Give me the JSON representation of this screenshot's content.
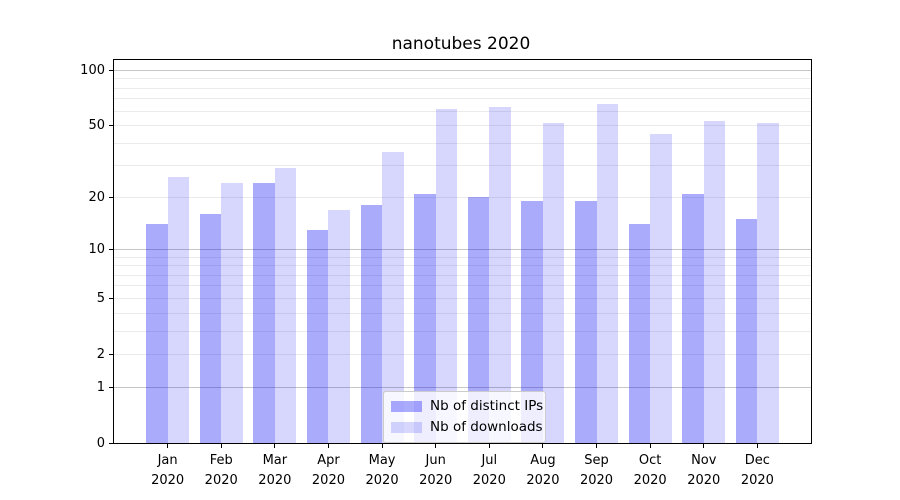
{
  "title": "nanotubes 2020",
  "chart_data": {
    "type": "bar",
    "title": "nanotubes 2020",
    "categories": [
      "Jan",
      "Feb",
      "Mar",
      "Apr",
      "May",
      "Jun",
      "Jul",
      "Aug",
      "Sep",
      "Oct",
      "Nov",
      "Dec"
    ],
    "year": "2020",
    "series": [
      {
        "name": "Nb of distinct IPs",
        "color": "rgba(8,8,245,0.34)",
        "values": [
          14,
          16,
          24,
          13,
          18,
          21,
          20,
          19,
          19,
          14,
          21,
          15
        ]
      },
      {
        "name": "Nb of downloads",
        "color": "rgba(8,8,245,0.16)",
        "values": [
          26,
          24,
          29,
          17,
          36,
          62,
          63,
          52,
          66,
          45,
          53,
          52
        ]
      }
    ],
    "xlabel": "",
    "ylabel": "",
    "yscale": "log(1+v)",
    "ylim": [
      0,
      114
    ],
    "ytick_values": [
      0,
      1,
      2,
      5,
      10,
      20,
      50,
      100
    ],
    "grid_major_values": [
      1,
      10,
      100
    ],
    "grid_minor_values": [
      2,
      3,
      4,
      5,
      6,
      7,
      8,
      9,
      20,
      30,
      40,
      50,
      60,
      70,
      80,
      90
    ],
    "legend_position": "lower center",
    "bar_colors_hint": {
      "distinct_ips": "#ababfc",
      "downloads": "#d7d7fd"
    }
  }
}
